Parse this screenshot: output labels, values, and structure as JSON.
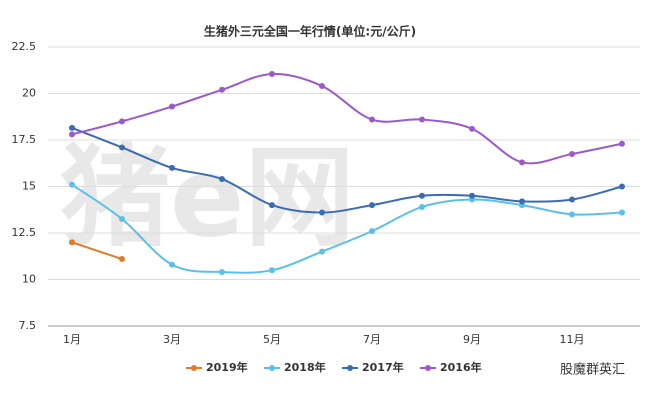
{
  "chart_data": {
    "type": "line",
    "title": "生猪外三元全国一年行情(单位:元/公斤)",
    "watermark": "猪e网",
    "footer": "股魔群英汇",
    "categories": [
      "1月",
      null,
      "3月",
      null,
      "5月",
      null,
      "7月",
      null,
      "9月",
      null,
      "11月",
      null
    ],
    "ylim": [
      7.5,
      22.5
    ],
    "yticks": [
      7.5,
      10,
      12.5,
      15,
      17.5,
      20,
      22.5
    ],
    "grid": true,
    "legend": "bottom",
    "series": [
      {
        "name": "2019年",
        "color": "#e07b2a",
        "values": [
          12.0,
          11.1,
          null,
          null,
          null,
          null,
          null,
          null,
          null,
          null,
          null,
          null
        ]
      },
      {
        "name": "2018年",
        "color": "#5bc0e8",
        "values": [
          15.1,
          13.25,
          10.8,
          10.4,
          10.5,
          11.5,
          12.6,
          13.9,
          14.3,
          14.0,
          13.5,
          13.6
        ]
      },
      {
        "name": "2017年",
        "color": "#3a6bb5",
        "values": [
          18.15,
          17.1,
          16.0,
          15.4,
          14.0,
          13.6,
          14.0,
          14.5,
          14.5,
          14.2,
          14.3,
          15.0
        ]
      },
      {
        "name": "2016年",
        "color": "#9b59c9",
        "values": [
          17.8,
          18.5,
          19.3,
          20.2,
          21.05,
          20.4,
          18.6,
          18.6,
          18.1,
          16.3,
          16.75,
          17.3
        ]
      }
    ]
  }
}
